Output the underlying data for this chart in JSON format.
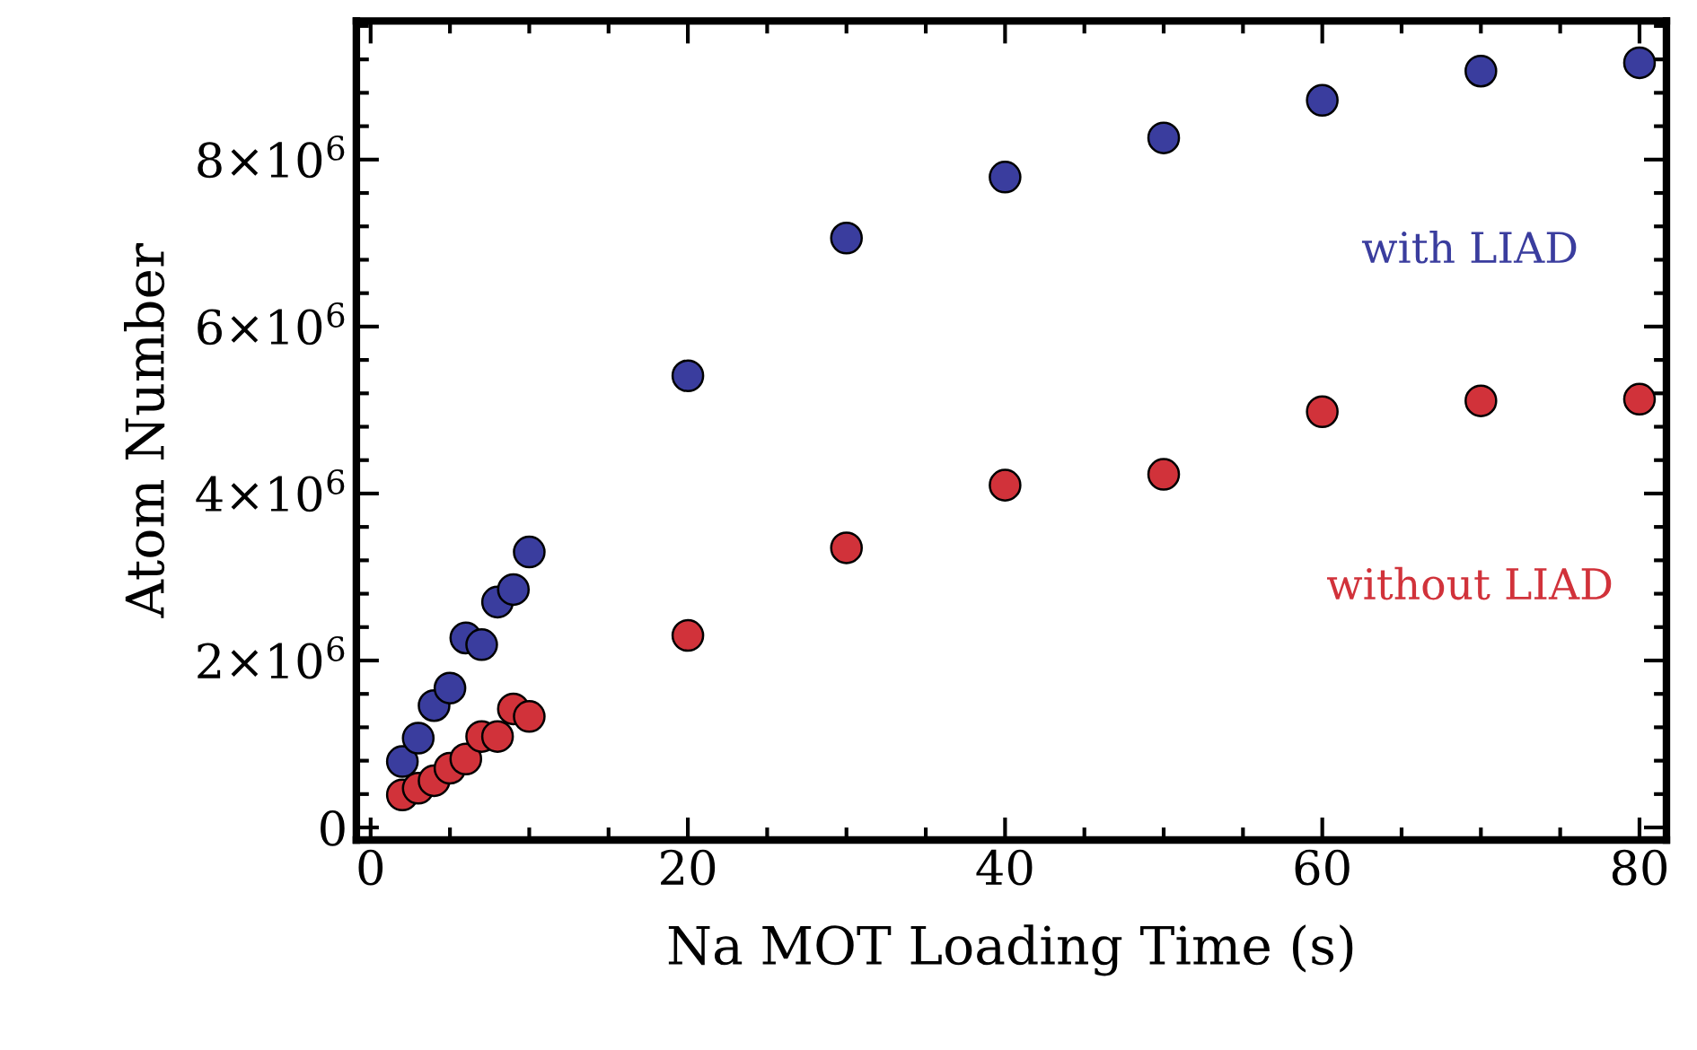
{
  "chart_data": {
    "type": "scatter",
    "xlabel": "Na MOT Loading Time (s)",
    "ylabel": "Atom Number",
    "x": [
      2,
      3,
      4,
      5,
      6,
      7,
      8,
      9,
      10,
      20,
      30,
      40,
      50,
      60,
      70,
      80
    ],
    "series": [
      {
        "name": "with LIAD",
        "color": "#3a3d9e",
        "values": [
          790000,
          1070000,
          1460000,
          1670000,
          2270000,
          2190000,
          2700000,
          2850000,
          3300000,
          5410000,
          7060000,
          7790000,
          8260000,
          8710000,
          9060000,
          9160000
        ]
      },
      {
        "name": "without LIAD",
        "color": "#d1323a",
        "values": [
          390000,
          470000,
          560000,
          710000,
          820000,
          1090000,
          1090000,
          1420000,
          1330000,
          2300000,
          3350000,
          4100000,
          4230000,
          4980000,
          5110000,
          5130000
        ]
      }
    ],
    "xlim": [
      -0.9,
      81.7
    ],
    "ylim": [
      -150000,
      9660000
    ],
    "xticks": [
      0,
      20,
      40,
      60,
      80
    ],
    "yticks": [
      {
        "value": 0,
        "label": "0"
      },
      {
        "value": 2000000,
        "label": "2×10$^{6}$"
      },
      {
        "value": 4000000,
        "label": "4×10$^{6}$"
      },
      {
        "value": 6000000,
        "label": "6×10$^{6}$"
      },
      {
        "value": 8000000,
        "label": "8×10$^{6}$"
      }
    ],
    "marker": "circle",
    "grid": false,
    "legend": "right"
  }
}
